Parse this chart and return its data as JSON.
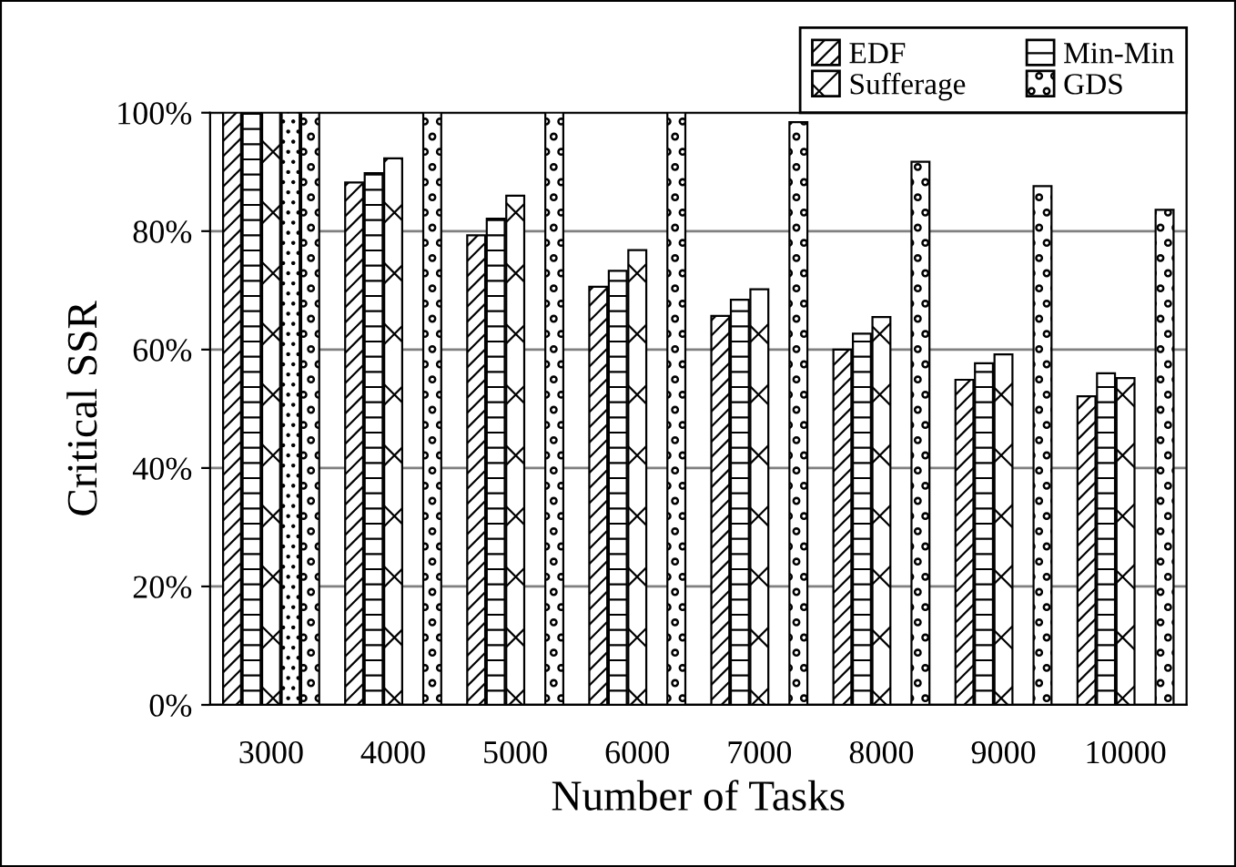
{
  "chart_data": {
    "type": "bar",
    "xlabel": "Number of Tasks",
    "ylabel": "Critical SSR",
    "categories": [
      "3000",
      "4000",
      "5000",
      "6000",
      "7000",
      "8000",
      "9000",
      "10000"
    ],
    "series": [
      {
        "name": "EDF",
        "color": "#000000",
        "values": [
          100,
          88.2,
          79.3,
          70.6,
          65.7,
          60.0,
          54.9,
          52.1
        ]
      },
      {
        "name": "Min-Min",
        "color": "#000000",
        "values": [
          100,
          89.8,
          82.1,
          73.3,
          68.4,
          62.7,
          57.7,
          56.0
        ]
      },
      {
        "name": "Sufferage",
        "color": "#000000",
        "values": [
          100,
          92.3,
          86.0,
          76.8,
          70.2,
          65.5,
          59.2,
          55.2
        ]
      },
      {
        "color": "#000000",
        "values": [
          100,
          null,
          null,
          null,
          null,
          null,
          null,
          null
        ]
      },
      {
        "name": "GDS",
        "color": "#000000",
        "values": [
          100,
          100,
          100,
          100,
          98.4,
          91.7,
          87.6,
          83.6
        ]
      }
    ],
    "ylim": [
      0,
      100
    ],
    "yticks": [
      {
        "value": 0,
        "label": "0%"
      },
      {
        "value": 20,
        "label": "20%"
      },
      {
        "value": 40,
        "label": "40%"
      },
      {
        "value": 60,
        "label": "60%"
      },
      {
        "value": 80,
        "label": "80%"
      },
      {
        "value": 100,
        "label": "100%"
      }
    ],
    "grid": "y",
    "legend": "top right"
  }
}
